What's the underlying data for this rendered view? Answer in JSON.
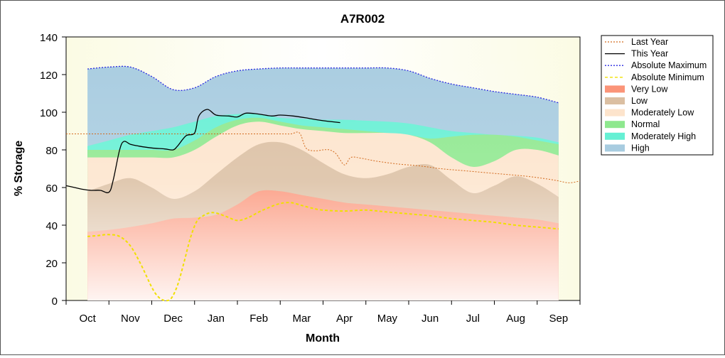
{
  "chart_data": {
    "type": "area",
    "title": "A7R002",
    "xlabel": "Month",
    "ylabel": "% Storage",
    "ylim": [
      0,
      140
    ],
    "yticks": [
      0,
      20,
      40,
      60,
      80,
      100,
      120,
      140
    ],
    "xlim": [
      0,
      12
    ],
    "categories": [
      "Oct",
      "Nov",
      "Dec",
      "Jan",
      "Feb",
      "Mar",
      "Apr",
      "May",
      "Jun",
      "Jul",
      "Aug",
      "Sep"
    ],
    "legend_position": "right",
    "bands": [
      {
        "name": "High",
        "color": "#a8cce0",
        "x": [
          0.5,
          1,
          1.5,
          2,
          2.5,
          3,
          3.5,
          4,
          4.5,
          5,
          5.5,
          6,
          6.5,
          7,
          7.5,
          8,
          8.5,
          9,
          9.5,
          10,
          10.5,
          11,
          11.5
        ],
        "y": [
          123,
          124,
          124,
          119,
          112,
          113,
          119,
          122,
          123,
          123.5,
          123.5,
          123.5,
          123.5,
          123.5,
          123.5,
          122,
          118,
          115,
          113,
          111,
          109.5,
          108,
          105
        ]
      },
      {
        "name": "Moderately High",
        "color": "#66f0d4",
        "x": [
          0.5,
          1,
          1.5,
          2,
          2.5,
          3,
          3.5,
          4,
          4.5,
          5,
          5.5,
          6,
          6.5,
          7,
          7.5,
          8,
          8.5,
          9,
          9.5,
          10,
          10.5,
          11,
          11.5
        ],
        "y": [
          82,
          85,
          88,
          90,
          92,
          95,
          98,
          99,
          99,
          97,
          96.5,
          96,
          96,
          95.5,
          95,
          94,
          92,
          90,
          89,
          88,
          87.5,
          86.5,
          84
        ]
      },
      {
        "name": "Normal",
        "color": "#8ee88e",
        "x": [
          0.5,
          1,
          1.5,
          2,
          2.5,
          3,
          3.5,
          4,
          4.5,
          5,
          5.5,
          6,
          6.5,
          7,
          7.5,
          8,
          8.5,
          9,
          9.5,
          10,
          10.5,
          11,
          11.5
        ],
        "y": [
          80,
          80,
          80,
          80,
          80,
          85,
          92,
          96,
          97,
          95,
          93,
          92,
          91,
          90,
          89,
          88,
          86,
          87,
          88,
          88,
          87,
          85,
          83
        ]
      },
      {
        "name": "Moderately Low",
        "color": "#fde4cc",
        "x": [
          0.5,
          1,
          1.5,
          2,
          2.5,
          3,
          3.5,
          4,
          4.5,
          5,
          5.5,
          6,
          6.5,
          7,
          7.5,
          8,
          8.5,
          9,
          9.5,
          10,
          10.5,
          11,
          11.5
        ],
        "y": [
          76,
          76,
          76,
          76,
          76,
          80,
          87,
          93,
          95,
          93,
          91,
          90,
          89,
          89,
          89,
          88,
          84,
          76,
          71,
          74,
          80,
          80,
          77
        ]
      },
      {
        "name": "Low",
        "color": "#dbbfa2",
        "x": [
          0.5,
          1,
          1.5,
          2,
          2.5,
          3,
          3.5,
          4,
          4.5,
          5,
          5.5,
          6,
          6.5,
          7,
          7.5,
          8,
          8.5,
          9,
          9.5,
          10,
          10.5,
          11,
          11.5
        ],
        "y": [
          58,
          62,
          65,
          60,
          54,
          58,
          67,
          76,
          83,
          84,
          80,
          73,
          67,
          65,
          67,
          71,
          72,
          64,
          57,
          61,
          66,
          62,
          55
        ]
      },
      {
        "name": "Very Low",
        "color": "#fb9478",
        "x": [
          0.5,
          1,
          1.5,
          2,
          2.5,
          3,
          3.5,
          4,
          4.5,
          5,
          5.5,
          6,
          6.5,
          7,
          7.5,
          8,
          8.5,
          9,
          9.5,
          10,
          10.5,
          11,
          11.5
        ],
        "y": [
          36.5,
          37.5,
          39,
          41,
          43.5,
          44,
          45.5,
          51,
          58,
          58,
          56,
          54,
          52,
          51,
          50,
          49,
          48,
          47,
          46,
          45,
          44,
          43,
          41
        ]
      }
    ],
    "lines": [
      {
        "name": "Last Year",
        "color": "#d26a1e",
        "dash": "2,2",
        "width": 1,
        "x": [
          0,
          0.5,
          1,
          1.5,
          2,
          2.5,
          3,
          3.5,
          4,
          4.5,
          5,
          5.25,
          5.45,
          5.6,
          5.8,
          6,
          6.15,
          6.3,
          6.5,
          6.65,
          6.9,
          7.25,
          7.75,
          8.25,
          8.75,
          9.25,
          9.75,
          10.25,
          10.75,
          11.25,
          11.5,
          11.75,
          12
        ],
        "y": [
          88.5,
          88.5,
          88.5,
          88.5,
          88.5,
          88.5,
          88.5,
          88.5,
          88.5,
          88.5,
          88.5,
          88.5,
          89,
          81,
          79.5,
          80,
          80,
          78,
          72,
          76,
          75.5,
          74,
          72.5,
          71.5,
          70,
          69,
          68,
          67,
          66,
          64.5,
          63.5,
          62.5,
          63.5
        ]
      },
      {
        "name": "This Year",
        "color": "#000000",
        "width": 1.3,
        "x": [
          0,
          0.2,
          0.4,
          0.6,
          0.8,
          1,
          1.1,
          1.25,
          1.35,
          1.5,
          1.7,
          2,
          2.3,
          2.5,
          2.6,
          2.8,
          3,
          3.1,
          3.3,
          3.5,
          3.8,
          4,
          4.2,
          4.5,
          4.8,
          5,
          5.3,
          5.6,
          6,
          6.4
        ],
        "y": [
          61,
          60,
          59,
          58.5,
          58.5,
          57.5,
          64,
          80,
          84.5,
          83,
          82,
          81,
          80.5,
          80,
          82,
          87.5,
          89,
          98,
          101.5,
          98.5,
          98,
          97.5,
          99.5,
          99,
          98,
          98.5,
          98,
          97,
          95.5,
          94.5
        ]
      },
      {
        "name": "Absolute Maximum",
        "color": "#2a2ae0",
        "dash": "2,2",
        "width": 1.3,
        "x": [
          0.5,
          1,
          1.5,
          2,
          2.5,
          3,
          3.5,
          4,
          4.5,
          5,
          5.5,
          6,
          6.5,
          7,
          7.5,
          8,
          8.5,
          9,
          9.5,
          10,
          10.5,
          11,
          11.5
        ],
        "y": [
          123,
          124,
          124,
          119,
          112,
          113,
          119,
          122,
          123,
          123.5,
          123.5,
          123.5,
          123.5,
          123.5,
          123.5,
          122,
          118,
          115,
          113,
          111,
          109.5,
          108,
          105
        ]
      },
      {
        "name": "Absolute Minimum",
        "color": "#f0e000",
        "dash": "4,3",
        "width": 2,
        "x": [
          0.5,
          0.75,
          1,
          1.25,
          1.5,
          1.75,
          2,
          2.15,
          2.3,
          2.45,
          2.6,
          2.75,
          2.9,
          3.05,
          3.2,
          3.35,
          3.5,
          3.75,
          4,
          4.25,
          4.5,
          4.75,
          5,
          5.25,
          5.5,
          5.75,
          6,
          6.5,
          7,
          7.5,
          8,
          8.5,
          9,
          9.5,
          10,
          10.5,
          11,
          11.5
        ],
        "y": [
          34,
          34.5,
          35,
          34,
          29,
          19,
          7,
          2,
          0,
          1,
          8,
          20,
          33,
          42,
          45,
          46.5,
          46.5,
          44.5,
          42.5,
          44,
          47,
          49.5,
          51.5,
          52,
          50.5,
          49,
          48,
          47.5,
          48,
          47,
          46,
          45,
          43.5,
          42.5,
          41.5,
          40,
          39,
          38
        ]
      }
    ],
    "legend": [
      {
        "label": "Last Year",
        "kind": "line",
        "color": "#d26a1e",
        "dash": "2,2"
      },
      {
        "label": "This Year",
        "kind": "line",
        "color": "#000000",
        "dash": ""
      },
      {
        "label": "Absolute Maximum",
        "kind": "line",
        "color": "#2a2ae0",
        "dash": "2,2"
      },
      {
        "label": "Absolute Minimum",
        "kind": "line",
        "color": "#f0e000",
        "dash": "4,3"
      },
      {
        "label": "Very Low",
        "kind": "band",
        "color": "#fb9478"
      },
      {
        "label": "Low",
        "kind": "band",
        "color": "#dbbfa2"
      },
      {
        "label": "Moderately Low",
        "kind": "band",
        "color": "#fde4cc"
      },
      {
        "label": "Normal",
        "kind": "band",
        "color": "#8ee88e"
      },
      {
        "label": "Moderately High",
        "kind": "band",
        "color": "#66f0d4"
      },
      {
        "label": "High",
        "kind": "band",
        "color": "#a8cce0"
      }
    ]
  }
}
